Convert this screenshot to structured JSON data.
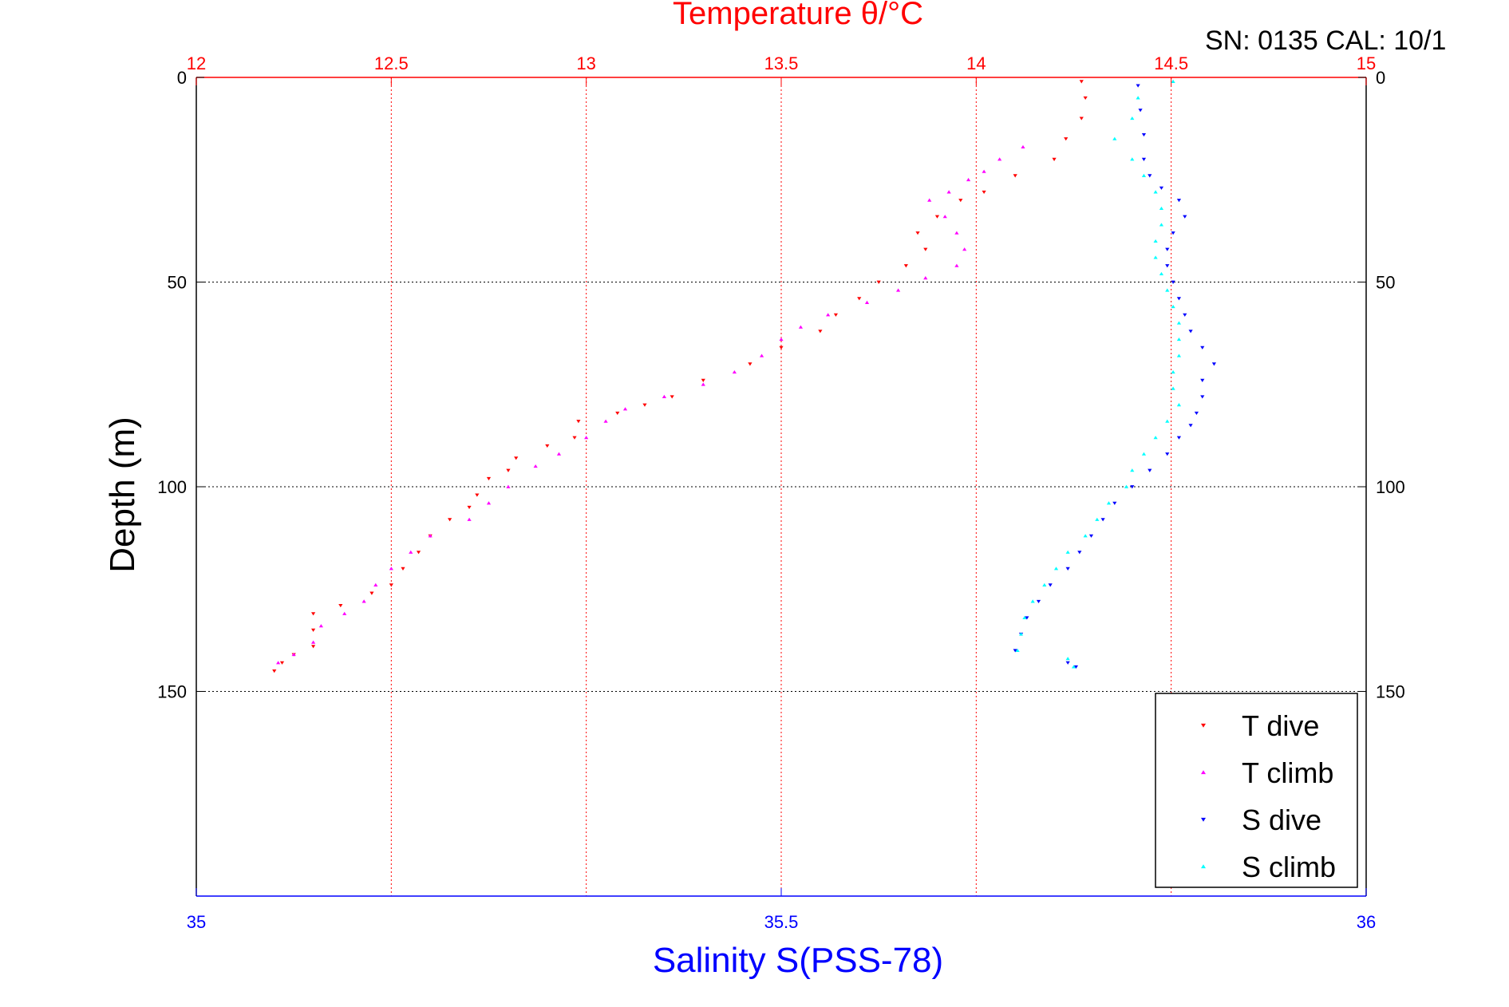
{
  "chart_data": {
    "type": "scatter",
    "title": "Temperature θ/°C",
    "subtitle": "SN: 0135  CAL: 10/1",
    "ylabel": "Depth (m)",
    "xlabel_bottom": "Salinity S(PSS-78)",
    "ylim": [
      0,
      200
    ],
    "y_reversed": true,
    "y_ticks": [
      0,
      50,
      100,
      150
    ],
    "y_tick_labels": [
      "0",
      "50",
      "100",
      "150"
    ],
    "top_axis": {
      "label": "Temperature θ/°C",
      "range": [
        12,
        15
      ],
      "ticks": [
        12,
        12.5,
        13,
        13.5,
        14,
        14.5,
        15
      ],
      "tick_labels": [
        "12",
        "12.5",
        "13",
        "13.5",
        "14",
        "14.5",
        "15"
      ]
    },
    "bottom_axis": {
      "label": "Salinity S(PSS-78)",
      "range": [
        35,
        36
      ],
      "ticks": [
        35,
        35.5,
        36
      ],
      "tick_labels": [
        "35",
        "35.5",
        "36"
      ]
    },
    "grid": true,
    "legend_position": "bottom-right",
    "series": [
      {
        "name": "T dive",
        "axis": "top",
        "color": "#ff0000",
        "marker": "down-triangle",
        "points": [
          [
            14.27,
            1
          ],
          [
            14.28,
            5
          ],
          [
            14.27,
            10
          ],
          [
            14.23,
            15
          ],
          [
            14.2,
            20
          ],
          [
            14.1,
            24
          ],
          [
            14.02,
            28
          ],
          [
            13.96,
            30
          ],
          [
            13.9,
            34
          ],
          [
            13.85,
            38
          ],
          [
            13.87,
            42
          ],
          [
            13.82,
            46
          ],
          [
            13.75,
            50
          ],
          [
            13.7,
            54
          ],
          [
            13.64,
            58
          ],
          [
            13.6,
            62
          ],
          [
            13.5,
            66
          ],
          [
            13.42,
            70
          ],
          [
            13.3,
            74
          ],
          [
            13.22,
            78
          ],
          [
            13.15,
            80
          ],
          [
            13.08,
            82
          ],
          [
            12.98,
            84
          ],
          [
            12.97,
            88
          ],
          [
            12.9,
            90
          ],
          [
            12.82,
            93
          ],
          [
            12.8,
            96
          ],
          [
            12.75,
            98
          ],
          [
            12.72,
            102
          ],
          [
            12.7,
            105
          ],
          [
            12.65,
            108
          ],
          [
            12.6,
            112
          ],
          [
            12.57,
            116
          ],
          [
            12.53,
            120
          ],
          [
            12.5,
            124
          ],
          [
            12.45,
            126
          ],
          [
            12.37,
            129
          ],
          [
            12.3,
            131
          ],
          [
            12.3,
            135
          ],
          [
            12.3,
            139
          ],
          [
            12.25,
            141
          ],
          [
            12.22,
            143
          ],
          [
            12.2,
            145
          ]
        ]
      },
      {
        "name": "T climb",
        "axis": "top",
        "color": "#ff00ff",
        "marker": "up-triangle",
        "points": [
          [
            14.12,
            17
          ],
          [
            14.06,
            20
          ],
          [
            14.02,
            23
          ],
          [
            13.98,
            25
          ],
          [
            13.93,
            28
          ],
          [
            13.88,
            30
          ],
          [
            13.92,
            34
          ],
          [
            13.95,
            38
          ],
          [
            13.97,
            42
          ],
          [
            13.95,
            46
          ],
          [
            13.87,
            49
          ],
          [
            13.8,
            52
          ],
          [
            13.72,
            55
          ],
          [
            13.62,
            58
          ],
          [
            13.55,
            61
          ],
          [
            13.5,
            64
          ],
          [
            13.45,
            68
          ],
          [
            13.38,
            72
          ],
          [
            13.3,
            75
          ],
          [
            13.2,
            78
          ],
          [
            13.1,
            81
          ],
          [
            13.05,
            84
          ],
          [
            13.0,
            88
          ],
          [
            12.93,
            92
          ],
          [
            12.87,
            95
          ],
          [
            12.8,
            100
          ],
          [
            12.75,
            104
          ],
          [
            12.7,
            108
          ],
          [
            12.6,
            112
          ],
          [
            12.55,
            116
          ],
          [
            12.5,
            120
          ],
          [
            12.46,
            124
          ],
          [
            12.43,
            128
          ],
          [
            12.38,
            131
          ],
          [
            12.32,
            134
          ],
          [
            12.3,
            138
          ],
          [
            12.25,
            141
          ],
          [
            12.21,
            143
          ]
        ]
      },
      {
        "name": "S dive",
        "axis": "bottom",
        "color": "#0000ff",
        "marker": "down-triangle",
        "points": [
          [
            35.805,
            2
          ],
          [
            35.807,
            8
          ],
          [
            35.81,
            14
          ],
          [
            35.81,
            20
          ],
          [
            35.815,
            24
          ],
          [
            35.825,
            27
          ],
          [
            35.84,
            30
          ],
          [
            35.845,
            34
          ],
          [
            35.835,
            38
          ],
          [
            35.83,
            42
          ],
          [
            35.83,
            46
          ],
          [
            35.835,
            50
          ],
          [
            35.84,
            54
          ],
          [
            35.845,
            58
          ],
          [
            35.85,
            62
          ],
          [
            35.86,
            66
          ],
          [
            35.87,
            70
          ],
          [
            35.86,
            74
          ],
          [
            35.86,
            78
          ],
          [
            35.855,
            82
          ],
          [
            35.85,
            85
          ],
          [
            35.84,
            88
          ],
          [
            35.83,
            92
          ],
          [
            35.815,
            96
          ],
          [
            35.8,
            100
          ],
          [
            35.785,
            104
          ],
          [
            35.775,
            108
          ],
          [
            35.765,
            112
          ],
          [
            35.755,
            116
          ],
          [
            35.745,
            120
          ],
          [
            35.73,
            124
          ],
          [
            35.72,
            128
          ],
          [
            35.71,
            132
          ],
          [
            35.705,
            136
          ],
          [
            35.7,
            140
          ],
          [
            35.745,
            143
          ],
          [
            35.752,
            144
          ]
        ]
      },
      {
        "name": "S climb",
        "axis": "bottom",
        "color": "#00ffff",
        "marker": "up-triangle",
        "points": [
          [
            35.835,
            1
          ],
          [
            35.805,
            5
          ],
          [
            35.8,
            10
          ],
          [
            35.785,
            15
          ],
          [
            35.8,
            20
          ],
          [
            35.81,
            24
          ],
          [
            35.82,
            28
          ],
          [
            35.825,
            32
          ],
          [
            35.825,
            36
          ],
          [
            35.82,
            40
          ],
          [
            35.82,
            44
          ],
          [
            35.825,
            48
          ],
          [
            35.83,
            52
          ],
          [
            35.835,
            56
          ],
          [
            35.84,
            60
          ],
          [
            35.84,
            64
          ],
          [
            35.84,
            68
          ],
          [
            35.835,
            72
          ],
          [
            35.835,
            76
          ],
          [
            35.84,
            80
          ],
          [
            35.83,
            84
          ],
          [
            35.82,
            88
          ],
          [
            35.81,
            92
          ],
          [
            35.8,
            96
          ],
          [
            35.795,
            100
          ],
          [
            35.78,
            104
          ],
          [
            35.77,
            108
          ],
          [
            35.76,
            112
          ],
          [
            35.745,
            116
          ],
          [
            35.735,
            120
          ],
          [
            35.725,
            124
          ],
          [
            35.715,
            128
          ],
          [
            35.708,
            132
          ],
          [
            35.705,
            136
          ],
          [
            35.702,
            140
          ],
          [
            35.745,
            142
          ],
          [
            35.75,
            144
          ]
        ]
      }
    ]
  }
}
